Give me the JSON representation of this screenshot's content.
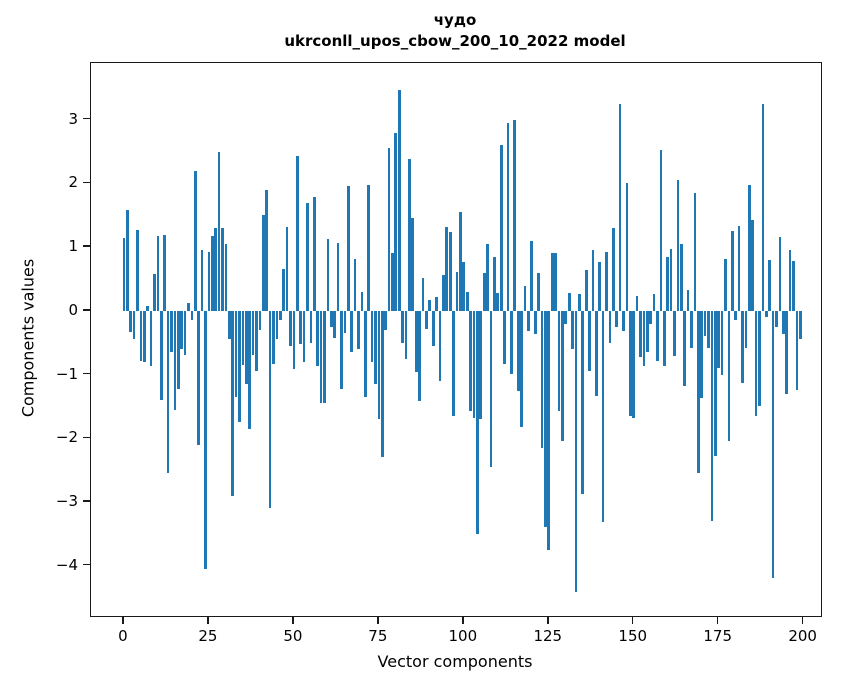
{
  "figure": {
    "title_line1": "чудо",
    "title_line2": "ukrconll_upos_cbow_200_10_2022 model"
  },
  "chart_data": {
    "type": "bar",
    "title": "чудо ukrconll_upos_cbow_200_10_2022 model",
    "xlabel": "Vector components",
    "ylabel": "Components values",
    "x_ticks": [
      0,
      25,
      50,
      75,
      100,
      125,
      150,
      175,
      200
    ],
    "y_ticks": [
      3,
      2,
      1,
      0,
      -1,
      -2,
      -3,
      -4
    ],
    "y_tick_labels": [
      "3",
      "2",
      "1",
      "0",
      "−1",
      "−2",
      "−3",
      "−4"
    ],
    "xlim": [
      -9.7,
      205.1
    ],
    "ylim": [
      -4.79,
      3.89
    ],
    "grid": false,
    "legend": null,
    "bar_color": "#1f77b4",
    "x": {
      "from": 0,
      "to": 199,
      "step": 1
    },
    "values": [
      1.15,
      1.58,
      -0.34,
      -0.45,
      1.27,
      -0.78,
      -0.8,
      0.08,
      -0.87,
      0.58,
      1.18,
      -1.4,
      1.19,
      -2.55,
      -0.65,
      -1.55,
      -1.23,
      -0.6,
      -0.7,
      0.12,
      -0.15,
      2.2,
      -2.1,
      0.95,
      -4.05,
      0.92,
      1.18,
      1.3,
      2.5,
      1.3,
      1.05,
      -0.45,
      -2.9,
      -1.35,
      -1.75,
      -0.85,
      -1.15,
      -1.85,
      -0.7,
      -0.95,
      -0.3,
      1.5,
      1.9,
      -3.1,
      -0.84,
      -0.45,
      -0.15,
      0.66,
      1.31,
      -0.55,
      -0.92,
      2.43,
      -0.52,
      -0.8,
      1.7,
      -0.5,
      1.78,
      -0.86,
      -1.44,
      -1.45,
      1.13,
      -0.26,
      -0.42,
      1.07,
      -1.22,
      -0.35,
      1.96,
      -0.65,
      0.82,
      -0.6,
      0.3,
      -1.35,
      1.97,
      -0.8,
      -1.15,
      -1.7,
      -2.3,
      -0.3,
      2.55,
      0.9,
      2.79,
      3.47,
      -0.5,
      -0.76,
      2.38,
      1.45,
      -0.96,
      -1.41,
      0.51,
      -0.29,
      0.17,
      -0.55,
      0.22,
      -1.1,
      0.56,
      1.31,
      1.23,
      -1.65,
      0.61,
      1.55,
      0.76,
      0.3,
      -1.57,
      -1.68,
      -3.5,
      -1.7,
      0.6,
      1.05,
      -2.45,
      0.84,
      0.28,
      2.6,
      -0.84,
      2.95,
      -0.99,
      3.0,
      -1.26,
      -1.83,
      0.39,
      -0.31,
      1.1,
      -0.37,
      0.59,
      -2.15,
      -3.4,
      -3.75,
      0.9,
      0.9,
      -1.57,
      -2.04,
      -0.2,
      0.28,
      -0.6,
      -4.42,
      0.26,
      -2.88,
      0.64,
      -0.94,
      0.95,
      -1.33,
      0.76,
      -3.31,
      0.93,
      -0.5,
      1.3,
      -0.26,
      3.25,
      -0.31,
      2.0,
      -1.65,
      -1.68,
      0.23,
      -0.73,
      -0.86,
      -0.65,
      -0.21,
      0.26,
      -0.79,
      2.52,
      -0.86,
      0.84,
      0.97,
      -0.71,
      2.05,
      1.05,
      -1.18,
      0.33,
      -0.58,
      1.85,
      -2.55,
      -1.37,
      -0.39,
      -0.58,
      -3.3,
      -2.28,
      -0.9,
      -1.0,
      0.81,
      -2.04,
      1.25,
      -0.15,
      1.33,
      -1.13,
      -0.58,
      1.97,
      1.43,
      -1.65,
      -1.49,
      3.25,
      -0.1,
      0.8,
      -4.2,
      -0.26,
      1.16,
      -0.37,
      -1.3,
      0.95,
      0.78,
      -1.25,
      -0.44
    ]
  }
}
